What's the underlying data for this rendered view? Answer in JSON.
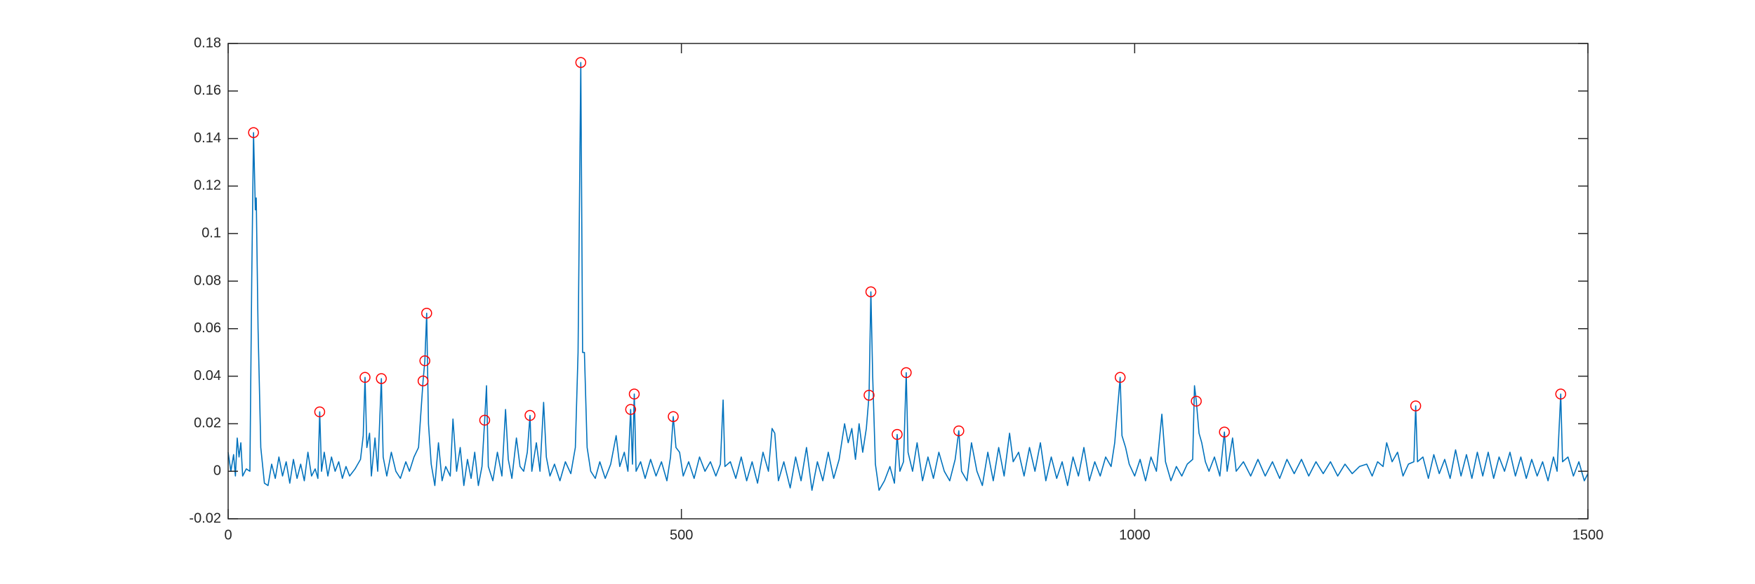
{
  "chart_data": {
    "type": "line",
    "x": [
      0,
      3,
      6,
      8,
      10,
      12,
      14,
      16,
      20,
      24,
      26,
      28,
      30,
      31,
      33,
      36,
      40,
      44,
      48,
      52,
      56,
      60,
      64,
      68,
      72,
      76,
      80,
      84,
      88,
      92,
      96,
      99,
      101,
      103,
      106,
      110,
      114,
      118,
      122,
      126,
      130,
      134,
      140,
      146,
      149,
      151,
      153,
      156,
      158,
      162,
      165,
      169,
      171,
      175,
      180,
      185,
      190,
      196,
      200,
      205,
      210,
      215,
      217,
      219,
      221,
      224,
      228,
      232,
      236,
      240,
      245,
      248,
      252,
      256,
      260,
      264,
      268,
      272,
      276,
      280,
      283,
      285,
      287,
      292,
      297,
      302,
      306,
      309,
      313,
      318,
      322,
      326,
      330,
      333,
      335,
      340,
      344,
      348,
      351,
      355,
      360,
      366,
      372,
      378,
      383,
      386,
      389,
      391,
      393,
      396,
      400,
      405,
      410,
      416,
      422,
      428,
      432,
      437,
      441,
      444,
      446,
      448,
      450,
      455,
      460,
      466,
      472,
      478,
      484,
      488,
      491,
      494,
      498,
      502,
      508,
      514,
      520,
      526,
      532,
      538,
      543,
      546,
      548,
      554,
      560,
      566,
      572,
      578,
      584,
      590,
      596,
      600,
      603,
      607,
      613,
      620,
      626,
      632,
      638,
      644,
      650,
      656,
      662,
      668,
      674,
      680,
      684,
      688,
      692,
      696,
      700,
      704,
      707,
      709,
      711,
      714,
      718,
      724,
      730,
      735,
      738,
      741,
      745,
      748,
      750,
      755,
      760,
      766,
      772,
      778,
      784,
      790,
      796,
      802,
      806,
      809,
      815,
      820,
      826,
      832,
      838,
      844,
      850,
      856,
      862,
      866,
      872,
      878,
      884,
      890,
      896,
      902,
      908,
      914,
      920,
      926,
      932,
      938,
      944,
      950,
      956,
      962,
      968,
      974,
      978,
      984,
      986,
      990,
      994,
      1000,
      1006,
      1012,
      1018,
      1024,
      1030,
      1034,
      1040,
      1046,
      1052,
      1058,
      1064,
      1066,
      1068,
      1071,
      1074,
      1078,
      1082,
      1088,
      1094,
      1099,
      1102,
      1108,
      1112,
      1120,
      1128,
      1136,
      1144,
      1152,
      1160,
      1168,
      1176,
      1184,
      1192,
      1200,
      1208,
      1216,
      1224,
      1232,
      1240,
      1248,
      1256,
      1262,
      1268,
      1274,
      1278,
      1284,
      1290,
      1296,
      1302,
      1308,
      1310,
      1312,
      1318,
      1324,
      1330,
      1336,
      1342,
      1348,
      1354,
      1360,
      1366,
      1372,
      1378,
      1384,
      1390,
      1396,
      1402,
      1408,
      1414,
      1420,
      1426,
      1432,
      1438,
      1444,
      1450,
      1456,
      1462,
      1466,
      1470,
      1472,
      1478,
      1484,
      1490,
      1496,
      1500
    ],
    "series": [
      {
        "color": "#0072bd",
        "values": [
          0.008,
          0,
          0.007,
          -0.002,
          0.014,
          0.006,
          0.012,
          -0.002,
          0.001,
          0,
          0.08,
          0.1425,
          0.11,
          0.115,
          0.06,
          0.01,
          -0.005,
          -0.006,
          0.003,
          -0.003,
          0.006,
          -0.002,
          0.004,
          -0.005,
          0.005,
          -0.003,
          0.003,
          -0.004,
          0.008,
          -0.002,
          0.001,
          -0.003,
          0.025,
          0,
          0.008,
          -0.002,
          0.006,
          0,
          0.004,
          -0.003,
          0.002,
          -0.002,
          0.001,
          0.005,
          0.015,
          0.0395,
          0.01,
          0.016,
          -0.002,
          0.014,
          0,
          0.039,
          0.006,
          -0.002,
          0.008,
          0,
          -0.003,
          0.004,
          0,
          0.006,
          0.01,
          0.038,
          0.0465,
          0.0665,
          0.02,
          0.003,
          -0.006,
          0.012,
          -0.004,
          0.002,
          -0.002,
          0.022,
          0,
          0.01,
          -0.006,
          0.005,
          -0.003,
          0.008,
          -0.006,
          0.002,
          0.0215,
          0.036,
          0.002,
          -0.004,
          0.008,
          -0.002,
          0.026,
          0.005,
          -0.003,
          0.014,
          0.002,
          0,
          0.008,
          0.0235,
          0,
          0.012,
          0,
          0.029,
          0.006,
          -0.002,
          0.003,
          -0.004,
          0.004,
          -0.001,
          0.01,
          0.05,
          0.172,
          0.05,
          0.05,
          0.01,
          0,
          -0.003,
          0.004,
          -0.003,
          0.003,
          0.015,
          0.002,
          0.008,
          0,
          0.026,
          0.003,
          0.0325,
          0,
          0.004,
          -0.003,
          0.005,
          -0.002,
          0.004,
          -0.004,
          0.006,
          0.023,
          0.01,
          0.008,
          -0.002,
          0.004,
          -0.003,
          0.006,
          0,
          0.004,
          -0.002,
          0.003,
          0.03,
          0.002,
          0.004,
          -0.003,
          0.006,
          -0.004,
          0.004,
          -0.005,
          0.008,
          0,
          0.018,
          0.016,
          -0.004,
          0.004,
          -0.007,
          0.006,
          -0.004,
          0.01,
          -0.008,
          0.004,
          -0.004,
          0.008,
          -0.003,
          0.005,
          0.02,
          0.012,
          0.018,
          0.005,
          0.02,
          0.008,
          0.018,
          0.032,
          0.0755,
          0.04,
          0.003,
          -0.008,
          -0.004,
          0.002,
          -0.005,
          0.0155,
          0,
          0.004,
          0.0415,
          0.008,
          0,
          0.012,
          -0.004,
          0.006,
          -0.003,
          0.008,
          0,
          -0.004,
          0.005,
          0.017,
          0,
          -0.004,
          0.012,
          0,
          -0.006,
          0.008,
          -0.004,
          0.01,
          -0.002,
          0.016,
          0.004,
          0.008,
          -0.002,
          0.01,
          0,
          0.012,
          -0.004,
          0.006,
          -0.003,
          0.004,
          -0.006,
          0.006,
          -0.002,
          0.01,
          -0.004,
          0.004,
          -0.002,
          0.006,
          0.002,
          0.012,
          0.0395,
          0.015,
          0.01,
          0.003,
          -0.002,
          0.005,
          -0.004,
          0.006,
          0,
          0.024,
          0.004,
          -0.004,
          0.002,
          -0.002,
          0.003,
          0.005,
          0.036,
          0.0295,
          0.016,
          0.012,
          0.004,
          0,
          0.006,
          -0.002,
          0.0165,
          0,
          0.014,
          0,
          0.004,
          -0.002,
          0.005,
          -0.002,
          0.004,
          -0.003,
          0.005,
          -0.001,
          0.005,
          -0.002,
          0.004,
          -0.001,
          0.004,
          -0.002,
          0.003,
          -0.001,
          0.002,
          0.003,
          -0.002,
          0.004,
          0.002,
          0.012,
          0.004,
          0.008,
          -0.002,
          0.003,
          0.004,
          0.0275,
          0.004,
          0.006,
          -0.003,
          0.007,
          -0.001,
          0.005,
          -0.003,
          0.009,
          -0.002,
          0.007,
          -0.003,
          0.008,
          -0.002,
          0.008,
          -0.003,
          0.006,
          0,
          0.008,
          -0.002,
          0.006,
          -0.003,
          0.005,
          -0.002,
          0.004,
          -0.004,
          0.006,
          0,
          0.0325,
          0.004,
          0.006,
          -0.002,
          0.004,
          -0.004,
          -0.001
        ]
      },
      {
        "type": "scatter",
        "marker": "circle",
        "color": "#ff0000",
        "x": [
          28,
          101,
          151,
          169,
          215,
          217,
          219,
          283,
          333,
          389,
          444,
          448,
          491,
          707,
          709,
          738,
          748,
          806,
          984,
          1068,
          1099,
          1310,
          1470
        ],
        "values": [
          0.1425,
          0.025,
          0.0395,
          0.039,
          0.038,
          0.0465,
          0.0665,
          0.0215,
          0.0235,
          0.172,
          0.026,
          0.0325,
          0.023,
          0.032,
          0.0755,
          0.0155,
          0.0415,
          0.017,
          0.0395,
          0.0295,
          0.0165,
          0.0275,
          0.0325
        ]
      }
    ],
    "xlim": [
      0,
      1500
    ],
    "xticks": [
      0,
      500,
      1000,
      1500
    ],
    "ylim": [
      -0.02,
      0.18
    ],
    "yticks": [
      -0.02,
      0,
      0.02,
      0.04,
      0.06,
      0.08,
      0.1,
      0.12,
      0.14,
      0.16,
      0.18
    ],
    "grid": false,
    "box": true
  }
}
